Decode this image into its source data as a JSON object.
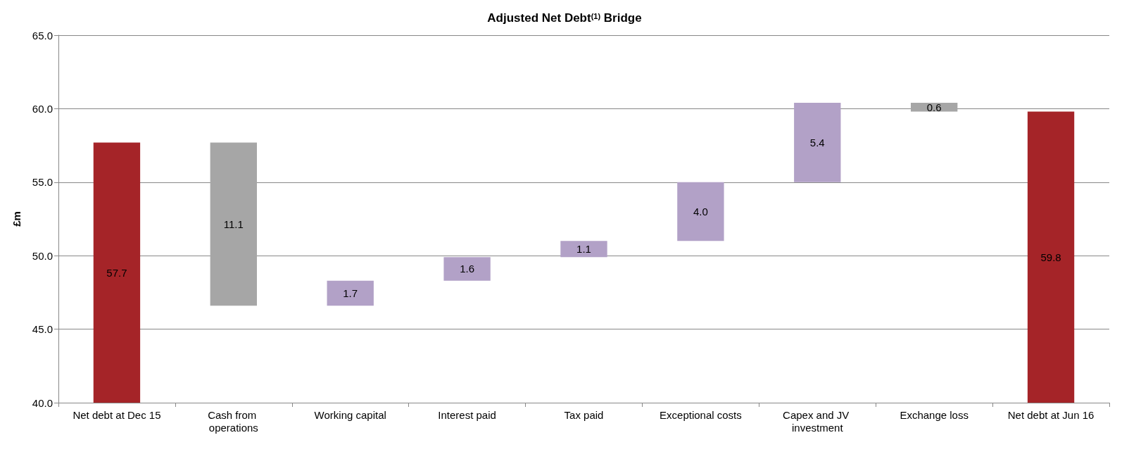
{
  "chart_data": {
    "type": "bar",
    "title": "Adjusted Net Debt$^{(1)}$ Bridge",
    "ylabel": "£m",
    "categories": [
      "Net debt at Dec 15",
      "Cash from operations",
      "Working capital",
      "Interest paid",
      "Tax paid",
      "Exceptional costs",
      "Capex and JV investment",
      "Exchange loss",
      "Net debt at Jun 16"
    ],
    "values": [
      57.7,
      11.1,
      1.7,
      1.6,
      1.1,
      4.0,
      5.4,
      0.6,
      59.8
    ],
    "base": [
      null,
      46.6,
      46.6,
      48.3,
      49.9,
      51.0,
      55.0,
      59.8,
      null
    ],
    "colors": [
      "#a52428",
      "#a6a6a6",
      "#b2a1c7",
      "#b2a1c7",
      "#b2a1c7",
      "#b2a1c7",
      "#b2a1c7",
      "#a6a6a6",
      "#a52428"
    ],
    "value_labels": [
      "57.7",
      "11.1",
      "1.7",
      "1.6",
      "1.1",
      "4.0",
      "5.4",
      "0.6",
      "59.8"
    ],
    "ylim": [
      40,
      65
    ],
    "yticks": [
      {
        "value": 40,
        "label": "40.0"
      },
      {
        "value": 45,
        "label": "45.0"
      },
      {
        "value": 50,
        "label": "50.0"
      },
      {
        "value": 55,
        "label": "55.0"
      },
      {
        "value": 60,
        "label": "60.0"
      },
      {
        "value": 65,
        "label": "65.0"
      }
    ],
    "grid": "y"
  }
}
